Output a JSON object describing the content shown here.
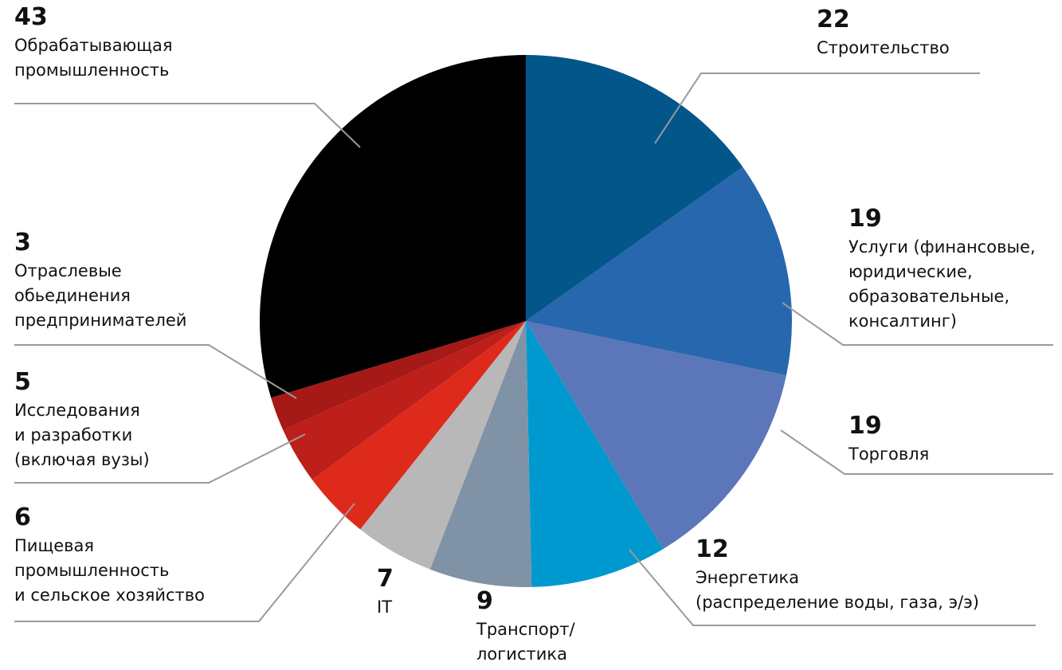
{
  "chart_data": {
    "type": "pie",
    "categories": [
      "Строительство",
      "Услуги (финансовые,\nюридические,\nобразовательные,\nконсалтинг)",
      "Торговля",
      "Энергетика\n(распределение воды, газа, э/э)",
      "Транспорт/\nлогистика",
      "IT",
      "Пищевая\nпромышленность\nи сельское хозяйство",
      "Исследования\nи разработки\n(включая вузы)",
      "Отраслевые\nобьединения\nпредпринимателей",
      "Обрабатывающая\nпромышленность"
    ],
    "values": [
      22,
      19,
      19,
      12,
      9,
      7,
      6,
      5,
      3,
      43
    ],
    "colors": [
      "#03568a",
      "#2767ad",
      "#5b76b9",
      "#0099cf",
      "#8092a6",
      "#b8b8b8",
      "#de2a1b",
      "#bd1f1a",
      "#a51916",
      "#000000"
    ]
  }
}
